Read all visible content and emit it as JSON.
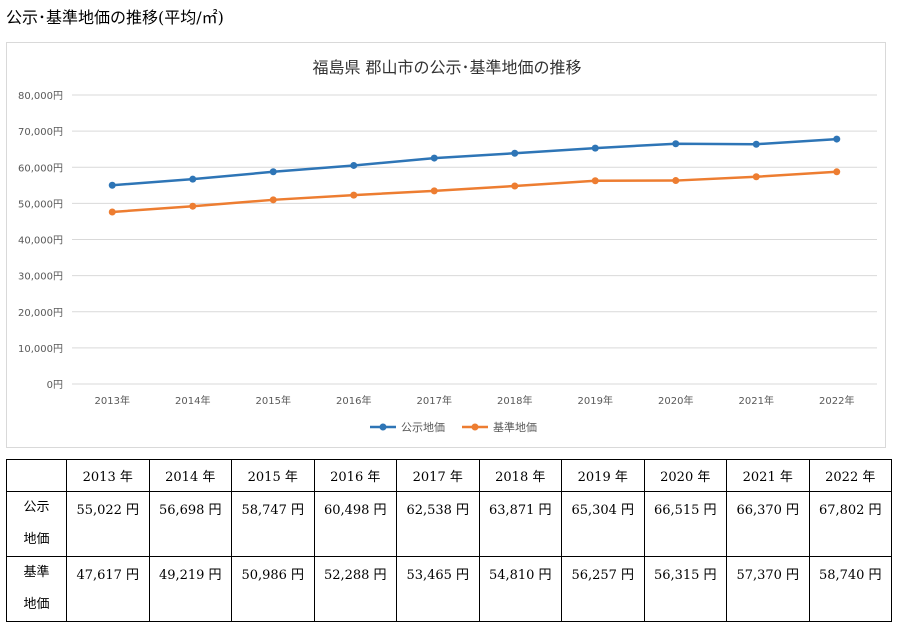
{
  "page_heading": "公示･基準地価の推移(平均/㎡)",
  "chart_data": {
    "type": "line",
    "title": "福島県 郡山市の公示･基準地価の推移",
    "categories": [
      "2013年",
      "2014年",
      "2015年",
      "2016年",
      "2017年",
      "2018年",
      "2019年",
      "2020年",
      "2021年",
      "2022年"
    ],
    "series": [
      {
        "name": "公示地価",
        "values": [
          55022,
          56698,
          58747,
          60498,
          62538,
          63871,
          65304,
          66515,
          66370,
          67802
        ],
        "color": "#2e75b6"
      },
      {
        "name": "基準地価",
        "values": [
          47617,
          49219,
          50986,
          52288,
          53465,
          54810,
          56257,
          56315,
          57370,
          58740
        ],
        "color": "#ed7d31"
      }
    ],
    "yticks": [
      "0円",
      "10,000円",
      "20,000円",
      "30,000円",
      "40,000円",
      "50,000円",
      "60,000円",
      "70,000円",
      "80,000円"
    ],
    "ylim": [
      0,
      80000
    ],
    "grid": true,
    "legend_position": "bottom",
    "xlabel": "",
    "ylabel": ""
  },
  "table": {
    "headers": [
      "2013 年",
      "2014 年",
      "2015 年",
      "2016 年",
      "2017 年",
      "2018 年",
      "2019 年",
      "2020 年",
      "2021 年",
      "2022 年"
    ],
    "rows": [
      {
        "label_top": "公示",
        "label_bottom": "地価",
        "cells": [
          "55,022 円",
          "56,698 円",
          "58,747 円",
          "60,498 円",
          "62,538 円",
          "63,871 円",
          "65,304 円",
          "66,515 円",
          "66,370 円",
          "67,802 円"
        ]
      },
      {
        "label_top": "基準",
        "label_bottom": "地価",
        "cells": [
          "47,617 円",
          "49,219 円",
          "50,986 円",
          "52,288 円",
          "53,465 円",
          "54,810 円",
          "56,257 円",
          "56,315 円",
          "57,370 円",
          "58,740 円"
        ]
      }
    ]
  }
}
